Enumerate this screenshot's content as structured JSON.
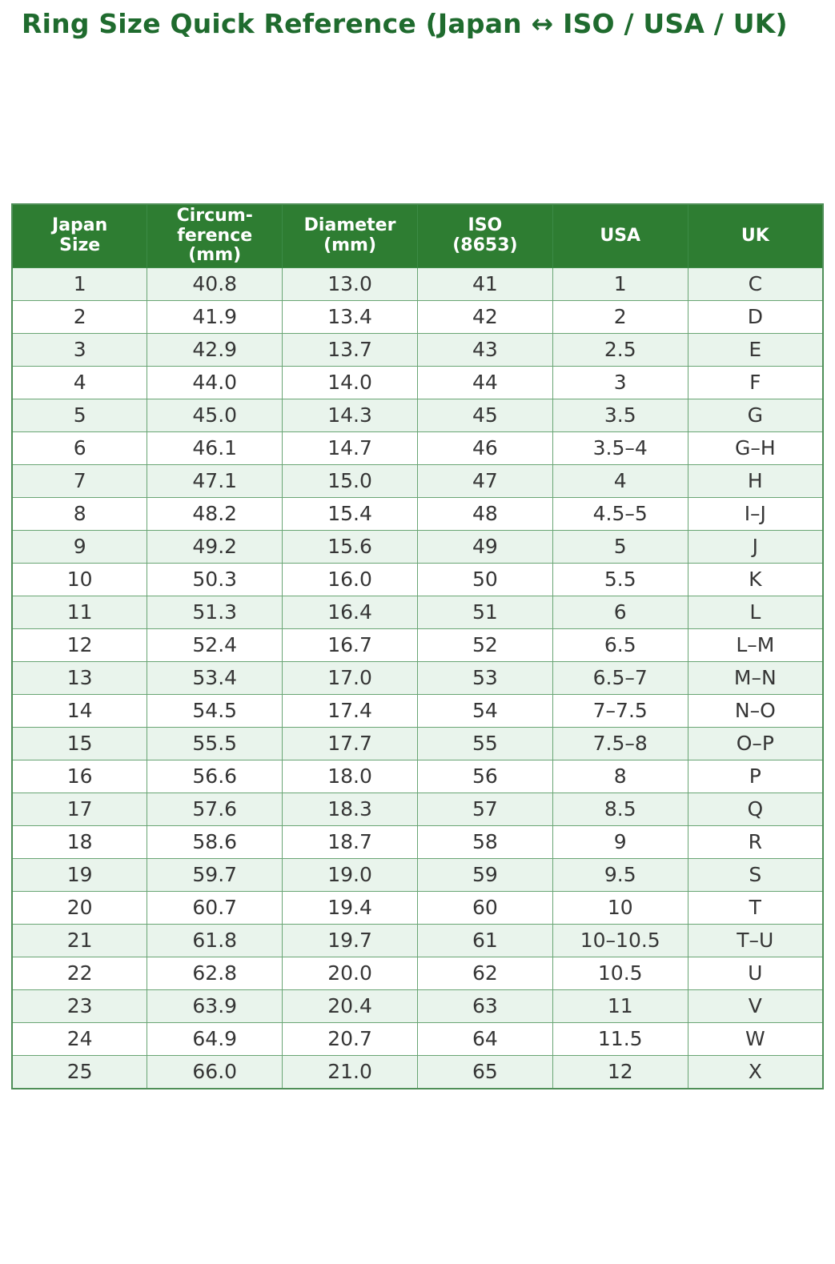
{
  "page": {
    "title": "Ring Size Quick Reference (Japan ↔ ISO / USA / UK)"
  },
  "colors": {
    "title_text": "#1f6b2e",
    "header_bg": "#2e7d32",
    "header_text": "#ffffff",
    "row_alt_bg": "#e9f4ec",
    "row_bg": "#ffffff",
    "grid": "#69a574"
  },
  "chart_data": {
    "type": "table",
    "title": "Ring Size Quick Reference (Japan ↔ ISO / USA / UK)",
    "columns": [
      "Japan\nSize",
      "Circum-\nference\n(mm)",
      "Diameter\n(mm)",
      "ISO\n(8653)",
      "USA",
      "UK"
    ],
    "rows": [
      [
        "1",
        "40.8",
        "13.0",
        "41",
        "1",
        "C"
      ],
      [
        "2",
        "41.9",
        "13.4",
        "42",
        "2",
        "D"
      ],
      [
        "3",
        "42.9",
        "13.7",
        "43",
        "2.5",
        "E"
      ],
      [
        "4",
        "44.0",
        "14.0",
        "44",
        "3",
        "F"
      ],
      [
        "5",
        "45.0",
        "14.3",
        "45",
        "3.5",
        "G"
      ],
      [
        "6",
        "46.1",
        "14.7",
        "46",
        "3.5–4",
        "G–H"
      ],
      [
        "7",
        "47.1",
        "15.0",
        "47",
        "4",
        "H"
      ],
      [
        "8",
        "48.2",
        "15.4",
        "48",
        "4.5–5",
        "I–J"
      ],
      [
        "9",
        "49.2",
        "15.6",
        "49",
        "5",
        "J"
      ],
      [
        "10",
        "50.3",
        "16.0",
        "50",
        "5.5",
        "K"
      ],
      [
        "11",
        "51.3",
        "16.4",
        "51",
        "6",
        "L"
      ],
      [
        "12",
        "52.4",
        "16.7",
        "52",
        "6.5",
        "L–M"
      ],
      [
        "13",
        "53.4",
        "17.0",
        "53",
        "6.5–7",
        "M–N"
      ],
      [
        "14",
        "54.5",
        "17.4",
        "54",
        "7–7.5",
        "N–O"
      ],
      [
        "15",
        "55.5",
        "17.7",
        "55",
        "7.5–8",
        "O–P"
      ],
      [
        "16",
        "56.6",
        "18.0",
        "56",
        "8",
        "P"
      ],
      [
        "17",
        "57.6",
        "18.3",
        "57",
        "8.5",
        "Q"
      ],
      [
        "18",
        "58.6",
        "18.7",
        "58",
        "9",
        "R"
      ],
      [
        "19",
        "59.7",
        "19.0",
        "59",
        "9.5",
        "S"
      ],
      [
        "20",
        "60.7",
        "19.4",
        "60",
        "10",
        "T"
      ],
      [
        "21",
        "61.8",
        "19.7",
        "61",
        "10–10.5",
        "T–U"
      ],
      [
        "22",
        "62.8",
        "20.0",
        "62",
        "10.5",
        "U"
      ],
      [
        "23",
        "63.9",
        "20.4",
        "63",
        "11",
        "V"
      ],
      [
        "24",
        "64.9",
        "20.7",
        "64",
        "11.5",
        "W"
      ],
      [
        "25",
        "66.0",
        "21.0",
        "65",
        "12",
        "X"
      ]
    ]
  }
}
